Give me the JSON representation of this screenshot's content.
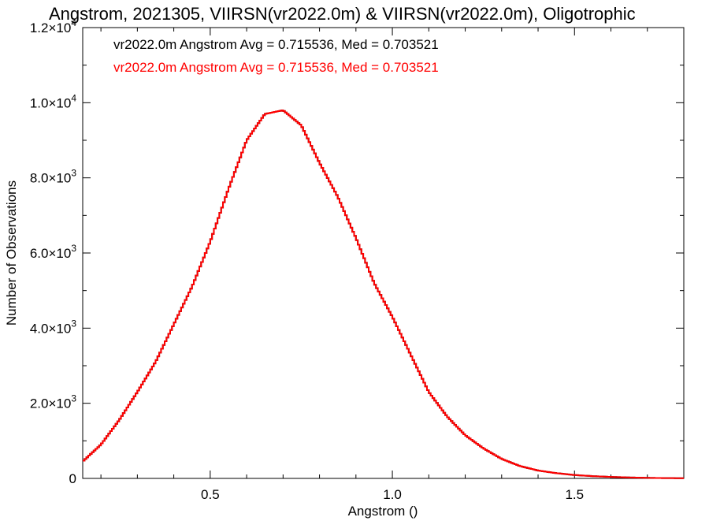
{
  "chart_data": {
    "type": "histogram-step",
    "title": "Angstrom, 2021305, VIIRSN(vr2022.0m) & VIIRSN(vr2022.0m), Oligotrophic",
    "xlabel": "Angstrom ()",
    "ylabel": "Number of Observations",
    "xlim": [
      0.15,
      1.8
    ],
    "ylim": [
      0,
      12000
    ],
    "x_ticks": [
      {
        "value": 0.5,
        "label": "0.5"
      },
      {
        "value": 1.0,
        "label": "1.0"
      },
      {
        "value": 1.5,
        "label": "1.5"
      }
    ],
    "y_ticks": [
      {
        "value": 0,
        "mant": "0",
        "exp": ""
      },
      {
        "value": 2000,
        "mant": "2.0×10",
        "exp": "3"
      },
      {
        "value": 4000,
        "mant": "4.0×10",
        "exp": "3"
      },
      {
        "value": 6000,
        "mant": "6.0×10",
        "exp": "3"
      },
      {
        "value": 8000,
        "mant": "8.0×10",
        "exp": "3"
      },
      {
        "value": 10000,
        "mant": "1.0×10",
        "exp": "4"
      },
      {
        "value": 12000,
        "mant": "1.2×10",
        "exp": "4"
      }
    ],
    "legend": [
      {
        "text": "vr2022.0m Angstrom Avg = 0.715536, Med = 0.703521",
        "color": "#000000"
      },
      {
        "text": "vr2022.0m Angstrom Avg = 0.715536, Med = 0.703521",
        "color": "#ff0000"
      }
    ],
    "series": [
      {
        "color": "#000000",
        "x": [
          0.15,
          0.2,
          0.25,
          0.3,
          0.35,
          0.4,
          0.45,
          0.5,
          0.55,
          0.6,
          0.65,
          0.7,
          0.75,
          0.8,
          0.85,
          0.9,
          0.95,
          1.0,
          1.05,
          1.1,
          1.15,
          1.2,
          1.25,
          1.3,
          1.35,
          1.4,
          1.45,
          1.5,
          1.55,
          1.6,
          1.65,
          1.7,
          1.75,
          1.8
        ],
        "y": [
          450,
          900,
          1550,
          2300,
          3100,
          4100,
          5100,
          6300,
          7700,
          9000,
          9700,
          9800,
          9400,
          8400,
          7500,
          6400,
          5200,
          4300,
          3300,
          2300,
          1650,
          1150,
          800,
          520,
          330,
          210,
          140,
          90,
          60,
          40,
          25,
          15,
          8,
          5
        ]
      },
      {
        "color": "#ff0000",
        "x": [
          0.15,
          0.2,
          0.25,
          0.3,
          0.35,
          0.4,
          0.45,
          0.5,
          0.55,
          0.6,
          0.65,
          0.7,
          0.75,
          0.8,
          0.85,
          0.9,
          0.95,
          1.0,
          1.05,
          1.1,
          1.15,
          1.2,
          1.25,
          1.3,
          1.35,
          1.4,
          1.45,
          1.5,
          1.55,
          1.6,
          1.65,
          1.7,
          1.75,
          1.8
        ],
        "y": [
          450,
          900,
          1550,
          2300,
          3100,
          4100,
          5100,
          6300,
          7700,
          9000,
          9700,
          9800,
          9400,
          8400,
          7500,
          6400,
          5200,
          4300,
          3300,
          2300,
          1650,
          1150,
          800,
          520,
          330,
          210,
          140,
          90,
          60,
          40,
          25,
          15,
          8,
          5
        ]
      }
    ],
    "bin_width": 0.005,
    "grid": false
  }
}
